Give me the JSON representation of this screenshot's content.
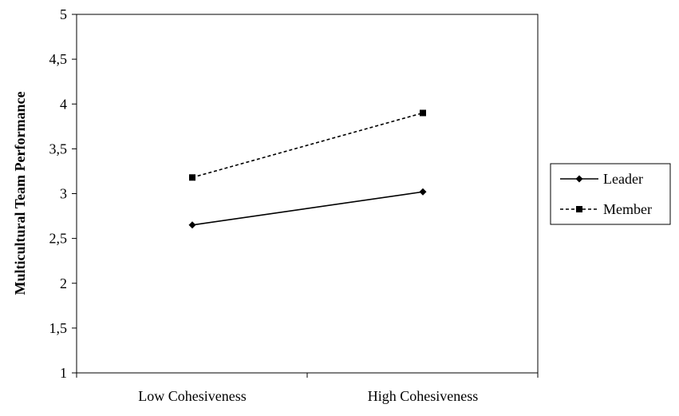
{
  "chart_data": {
    "type": "line",
    "title": "",
    "xlabel": "",
    "ylabel": "Multicultural Team Performance",
    "categories": [
      "Low Cohesiveness",
      "High Cohesiveness"
    ],
    "ylim": [
      1,
      5
    ],
    "yticks": [
      1,
      1.5,
      2,
      2.5,
      3,
      3.5,
      4,
      4.5,
      5
    ],
    "ytick_labels": [
      "1",
      "1,5",
      "2",
      "2,5",
      "3",
      "3,5",
      "4",
      "4,5",
      "5"
    ],
    "grid": false,
    "legend_position": "right",
    "series": [
      {
        "name": "Leader",
        "values": [
          2.65,
          3.02
        ],
        "line_style": "solid",
        "marker": "diamond",
        "color": "#000000"
      },
      {
        "name": "Member",
        "values": [
          3.18,
          3.9
        ],
        "line_style": "dashed",
        "marker": "square",
        "color": "#000000"
      }
    ]
  }
}
